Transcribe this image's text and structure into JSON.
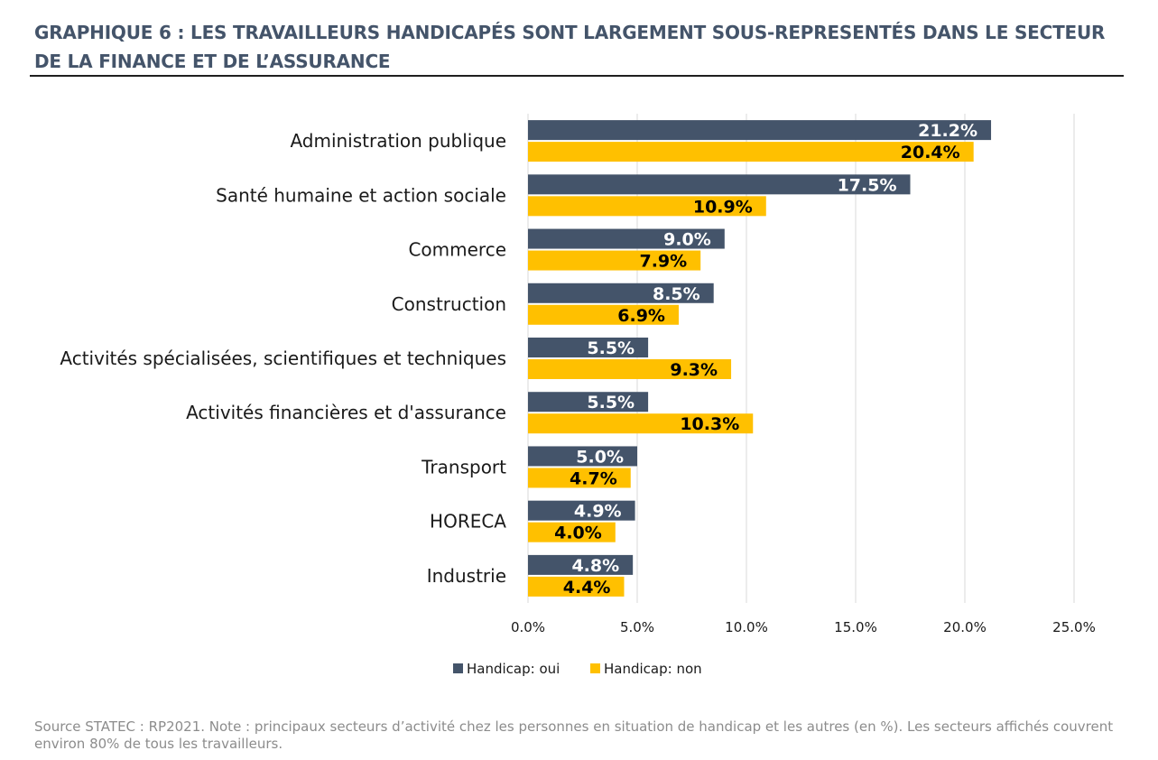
{
  "title": "GRAPHIQUE 6 : LES TRAVAILLEURS HANDICAPÉS SONT LARGEMENT SOUS-REPRESENTÉS DANS LE SECTEUR DE LA FINANCE ET DE L’ASSURANCE",
  "source": "Source STATEC : RP2021. Note : principaux secteurs d’activité chez les personnes en situation de handicap et les autres (en %). Les secteurs affichés couvrent environ 80% de tous les travailleurs.",
  "chart_data": {
    "type": "bar",
    "orientation": "horizontal",
    "categories": [
      "Administration publique",
      "Santé humaine et action sociale",
      "Commerce",
      "Construction",
      "Activités spécialisées, scientifiques et techniques",
      "Activités financières et d'assurance",
      "Transport",
      "HORECA",
      "Industrie"
    ],
    "series": [
      {
        "name": "Handicap: oui",
        "color": "#44546a",
        "label_color": "#ffffff",
        "values": [
          21.2,
          17.5,
          9.0,
          8.5,
          5.5,
          5.5,
          5.0,
          4.9,
          4.8
        ],
        "labels": [
          "21.2%",
          "17.5%",
          "9.0%",
          "8.5%",
          "5.5%",
          "5.5%",
          "5.0%",
          "4.9%",
          "4.8%"
        ]
      },
      {
        "name": "Handicap: non",
        "color": "#ffc000",
        "label_color": "#000000",
        "values": [
          20.4,
          10.9,
          7.9,
          6.9,
          9.3,
          10.3,
          4.7,
          4.0,
          4.4
        ],
        "labels": [
          "20.4%",
          "10.9%",
          "7.9%",
          "6.9%",
          "9.3%",
          "10.3%",
          "4.7%",
          "4.0%",
          "4.4%"
        ]
      }
    ],
    "xlim": [
      0,
      25
    ],
    "xticks": [
      0,
      5,
      10,
      15,
      20,
      25
    ],
    "xtick_labels": [
      "0.0%",
      "5.0%",
      "10.0%",
      "15.0%",
      "20.0%",
      "25.0%"
    ],
    "grid": "vertical",
    "legend": "bottom-center",
    "xlabel": "",
    "ylabel": ""
  }
}
